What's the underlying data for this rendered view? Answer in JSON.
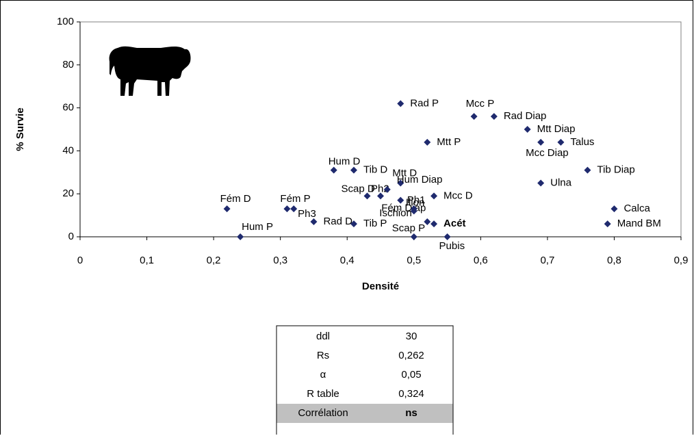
{
  "chart_data": {
    "type": "scatter",
    "x_label": "Densité",
    "y_label": "% Survie",
    "xlim": [
      0,
      0.9
    ],
    "ylim": [
      0,
      100
    ],
    "xticks": [
      {
        "value": 0,
        "label": "0"
      },
      {
        "value": 0.1,
        "label": "0,1"
      },
      {
        "value": 0.2,
        "label": "0,2"
      },
      {
        "value": 0.3,
        "label": "0,3"
      },
      {
        "value": 0.4,
        "label": "0,4"
      },
      {
        "value": 0.5,
        "label": "0,5"
      },
      {
        "value": 0.6,
        "label": "0,6"
      },
      {
        "value": 0.7,
        "label": "0,7"
      },
      {
        "value": 0.8,
        "label": "0,8"
      },
      {
        "value": 0.9,
        "label": "0,9"
      }
    ],
    "yticks": [
      0,
      20,
      40,
      60,
      80,
      100
    ],
    "grid": false,
    "color": "#1f2a6e",
    "point_labels": [
      "Rad P",
      "Mcc P",
      "Rad Diap",
      "Mtt Diap",
      "Mcc Diap",
      "Talus",
      "Mtt P",
      "Tib Diap",
      "Ulna",
      "Hum D",
      "Tib D",
      "Mtt D",
      "Scap D",
      "Ph2",
      "Hum Diap",
      "Mcc D",
      "Fém Diap",
      "Ph1",
      "Fém D",
      "Fém P",
      "Ph3",
      "Rad D",
      "Tib P",
      "Ischion",
      "Ilion",
      "Acét",
      "Scap P",
      "Pubis",
      "Hum P",
      "Calca",
      "Mand BM"
    ],
    "x": [
      0.48,
      0.59,
      0.62,
      0.67,
      0.69,
      0.72,
      0.52,
      0.76,
      0.69,
      0.38,
      0.41,
      0.48,
      0.43,
      0.45,
      0.46,
      0.53,
      0.48,
      0.5,
      0.22,
      0.31,
      0.32,
      0.35,
      0.41,
      0.52,
      0.5,
      0.53,
      0.5,
      0.55,
      0.24,
      0.8,
      0.79
    ],
    "y": [
      62,
      56,
      56,
      50,
      44,
      44,
      44,
      31,
      25,
      31,
      31,
      25,
      19,
      19,
      22,
      19,
      17,
      13,
      13,
      13,
      13,
      7,
      6,
      7,
      12,
      6,
      0,
      0,
      0,
      13,
      6
    ]
  },
  "table": {
    "rows": [
      [
        "ddl",
        "30"
      ],
      [
        "Rs",
        "0,262"
      ],
      [
        "α",
        "0,05"
      ],
      [
        "R table",
        "0,324"
      ],
      [
        "Corrélation",
        "ns"
      ]
    ]
  }
}
